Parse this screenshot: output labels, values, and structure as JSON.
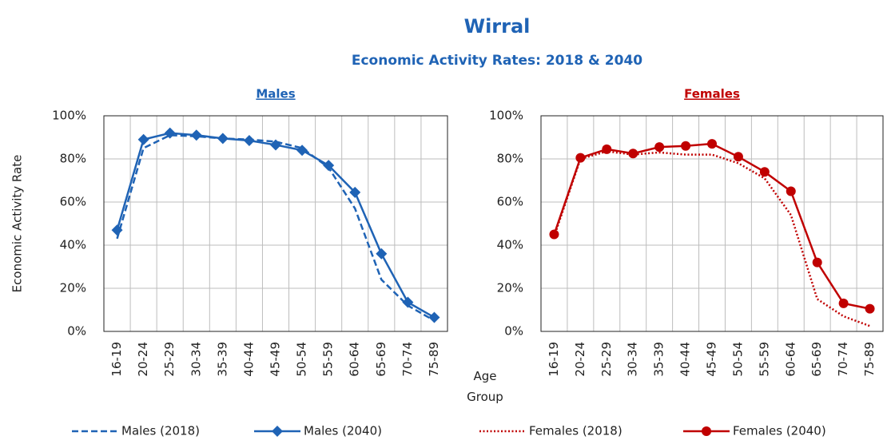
{
  "header": {
    "title": "Wirral",
    "subtitle": "Economic Activity Rates: 2018 & 2040"
  },
  "chart_data": [
    {
      "type": "line",
      "subtitle": "Males",
      "y_label": "Economic Activity Rate",
      "x_label": "Age Group",
      "categories": [
        "16-19",
        "20-24",
        "25-29",
        "30-34",
        "35-39",
        "40-44",
        "45-49",
        "50-54",
        "55-59",
        "60-64",
        "65-69",
        "70-74",
        "75-89"
      ],
      "series": [
        {
          "name": "Males (2018)",
          "color": "#1f63b5",
          "dash": "dashed",
          "marker": "none",
          "values": [
            43,
            85,
            91,
            90.5,
            89.5,
            89,
            88,
            85,
            76,
            57,
            24,
            12,
            5
          ]
        },
        {
          "name": "Males (2040)",
          "color": "#1f63b5",
          "dash": "solid",
          "marker": "diamond",
          "values": [
            47,
            89,
            92,
            91,
            89.5,
            88.5,
            86.5,
            84,
            77,
            64.5,
            36,
            13.5,
            6.5
          ]
        }
      ],
      "ylim": [
        0,
        100
      ],
      "yticks": [
        {
          "value": 0,
          "label": "0%"
        },
        {
          "value": 20,
          "label": "20%"
        },
        {
          "value": 40,
          "label": "40%"
        },
        {
          "value": 60,
          "label": "60%"
        },
        {
          "value": 80,
          "label": "80%"
        },
        {
          "value": 100,
          "label": "100%"
        }
      ],
      "grid": true
    },
    {
      "type": "line",
      "subtitle": "Females",
      "categories": [
        "16-19",
        "20-24",
        "25-29",
        "30-34",
        "35-39",
        "40-44",
        "45-49",
        "50-54",
        "55-59",
        "60-64",
        "65-69",
        "70-74",
        "75-89"
      ],
      "series": [
        {
          "name": "Females (2018)",
          "color": "#c00000",
          "dash": "dotted",
          "marker": "none",
          "values": [
            44,
            80,
            83.5,
            82,
            83,
            82,
            82,
            78,
            71,
            54,
            15,
            7,
            2.5
          ]
        },
        {
          "name": "Females (2040)",
          "color": "#c00000",
          "dash": "solid",
          "marker": "circle",
          "values": [
            45,
            80.5,
            84.5,
            82.5,
            85.5,
            86,
            87,
            81,
            74,
            65,
            32,
            13,
            10.5
          ]
        }
      ],
      "ylim": [
        0,
        100
      ],
      "yticks": [
        {
          "value": 0,
          "label": "0%"
        },
        {
          "value": 20,
          "label": "20%"
        },
        {
          "value": 40,
          "label": "40%"
        },
        {
          "value": 60,
          "label": "60%"
        },
        {
          "value": 80,
          "label": "80%"
        },
        {
          "value": 100,
          "label": "100%"
        }
      ],
      "grid": true
    }
  ]
}
